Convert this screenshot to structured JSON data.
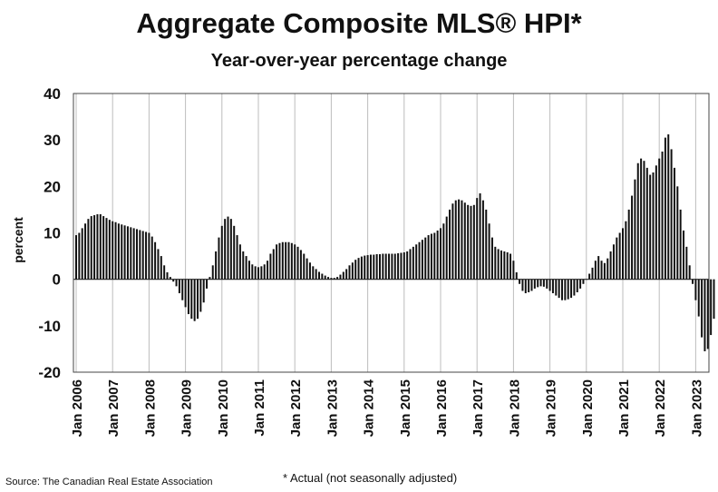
{
  "title": "Aggregate Composite MLS® HPI*",
  "subtitle": "Year-over-year percentage change",
  "source": "Source: The Canadian Real Estate Association",
  "footnote": "* Actual (not seasonally adjusted)",
  "chart_data": {
    "type": "bar",
    "title": "Aggregate Composite MLS® HPI*",
    "subtitle": "Year-over-year percentage change",
    "ylabel": "percent",
    "xlabel": "",
    "ylim": [
      -20,
      40
    ],
    "yticks": [
      -20,
      -10,
      0,
      10,
      20,
      30,
      40
    ],
    "grid": "vertical",
    "bar_color": "#111111",
    "start": "Jan 2006",
    "frequency": "monthly",
    "xtick_labels": [
      "Jan 2006",
      "Jan 2007",
      "Jan 2008",
      "Jan 2009",
      "Jan 2010",
      "Jan 2011",
      "Jan 2012",
      "Jan 2013",
      "Jan 2014",
      "Jan 2015",
      "Jan 2016",
      "Jan 2017",
      "Jan 2018",
      "Jan 2019",
      "Jan 2020",
      "Jan 2021",
      "Jan 2022",
      "Jan 2023"
    ],
    "values": [
      9.5,
      10.0,
      11.0,
      12.0,
      13.0,
      13.6,
      13.8,
      14.0,
      14.0,
      13.6,
      13.2,
      12.8,
      12.5,
      12.3,
      12.0,
      11.8,
      11.6,
      11.4,
      11.2,
      11.0,
      10.8,
      10.6,
      10.4,
      10.2,
      10.0,
      9.2,
      8.0,
      6.5,
      5.0,
      3.0,
      1.5,
      0.5,
      -0.5,
      -1.5,
      -3.0,
      -4.5,
      -6.0,
      -7.5,
      -8.5,
      -9.0,
      -8.5,
      -7.0,
      -5.0,
      -2.0,
      0.5,
      3.0,
      6.0,
      9.0,
      11.5,
      13.0,
      13.5,
      13.0,
      11.5,
      9.5,
      7.5,
      6.0,
      5.0,
      4.0,
      3.2,
      2.8,
      2.6,
      2.8,
      3.2,
      4.0,
      5.5,
      6.5,
      7.5,
      7.8,
      8.0,
      8.0,
      8.0,
      7.8,
      7.5,
      7.0,
      6.3,
      5.5,
      4.5,
      3.6,
      2.8,
      2.2,
      1.6,
      1.2,
      0.8,
      0.5,
      0.3,
      0.3,
      0.5,
      1.0,
      1.6,
      2.2,
      3.0,
      3.6,
      4.2,
      4.6,
      4.9,
      5.1,
      5.2,
      5.3,
      5.3,
      5.4,
      5.4,
      5.5,
      5.5,
      5.5,
      5.5,
      5.5,
      5.6,
      5.7,
      5.8,
      6.0,
      6.5,
      7.0,
      7.5,
      8.0,
      8.5,
      9.0,
      9.5,
      9.8,
      10.0,
      10.5,
      11.0,
      12.0,
      13.5,
      15.0,
      16.3,
      17.0,
      17.2,
      17.0,
      16.5,
      16.0,
      15.8,
      16.0,
      17.5,
      18.5,
      17.0,
      15.0,
      12.0,
      9.0,
      7.0,
      6.5,
      6.2,
      6.0,
      5.8,
      5.5,
      4.0,
      1.5,
      -1.0,
      -2.5,
      -3.0,
      -2.8,
      -2.5,
      -2.0,
      -1.7,
      -1.5,
      -1.6,
      -2.0,
      -2.5,
      -3.0,
      -3.5,
      -4.0,
      -4.5,
      -4.5,
      -4.3,
      -4.0,
      -3.5,
      -2.8,
      -2.0,
      -1.0,
      0.0,
      1.2,
      2.5,
      4.0,
      5.0,
      4.0,
      3.5,
      4.5,
      6.0,
      7.5,
      9.0,
      10.0,
      11.0,
      12.5,
      15.0,
      18.0,
      21.5,
      25.0,
      26.0,
      25.5,
      24.0,
      22.5,
      23.0,
      24.5,
      26.0,
      27.5,
      30.5,
      31.2,
      28.0,
      24.0,
      20.0,
      15.0,
      10.5,
      7.0,
      3.0,
      -1.0,
      -4.5,
      -8.0,
      -12.5,
      -15.5,
      -15.0,
      -12.0,
      -8.5
    ]
  }
}
